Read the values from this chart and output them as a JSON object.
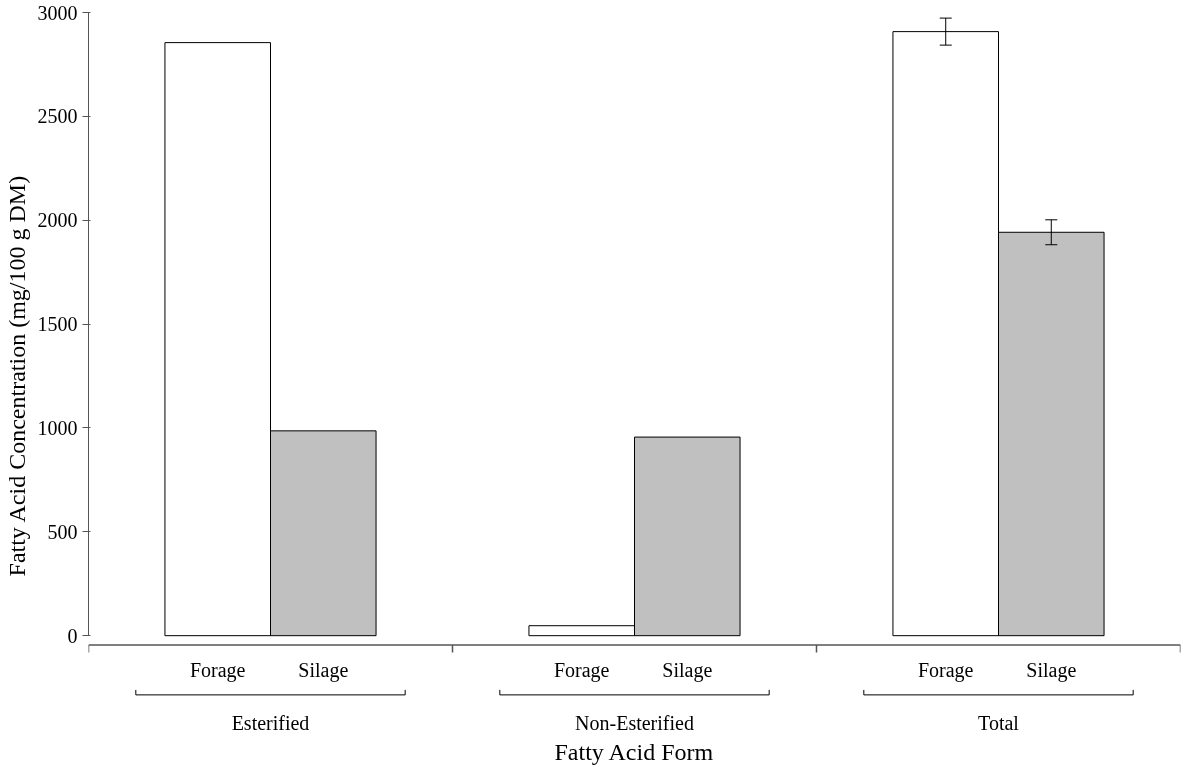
{
  "chart_data": {
    "type": "bar",
    "xlabel": "Fatty Acid Form",
    "ylabel": "Fatty Acid Concentration (mg/100 g DM)",
    "categories": [
      "Esterified",
      "Non-Esterified",
      "Total"
    ],
    "series": [
      {
        "name": "Forage",
        "color": "#ffffff",
        "values": [
          2855,
          48,
          2908
        ],
        "errors": [
          null,
          null,
          65
        ]
      },
      {
        "name": "Silage",
        "color": "#c0c0c0",
        "values": [
          986,
          956,
          1942
        ],
        "errors": [
          null,
          null,
          60
        ]
      }
    ],
    "ylim": [
      0,
      3000
    ],
    "yticks": [
      0,
      500,
      1000,
      1500,
      2000,
      2500,
      3000
    ],
    "grid": false
  }
}
